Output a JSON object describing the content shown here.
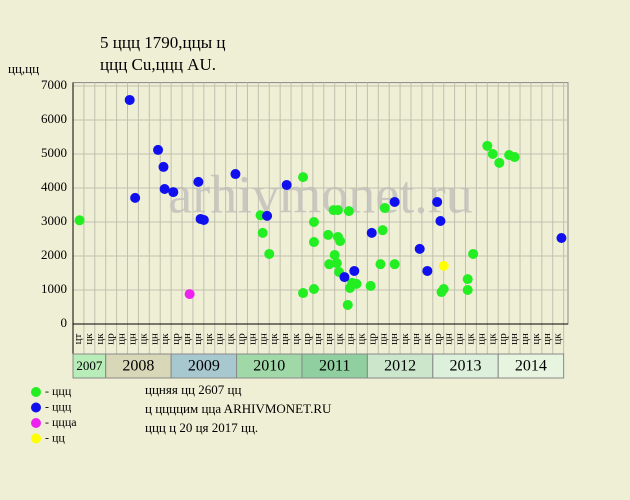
{
  "chart_data": {
    "type": "scatter",
    "title": "5 ццц 1790,ццы ц",
    "subtitle": "ццц Cu,ццц AU.",
    "y_label": "цц,цц",
    "watermark": "arhivmonet.ru",
    "ylim": [
      0,
      7100
    ],
    "yticks": [
      0,
      1000,
      2000,
      3000,
      4000,
      5000,
      6000,
      7000
    ],
    "xlim": [
      0,
      45.4
    ],
    "column_labels": [
      "цт",
      "цк",
      "цк",
      "цр",
      "цн",
      "цн",
      "цк",
      "цн",
      "цк",
      "цр",
      "цн",
      "цн",
      "цк",
      "цн",
      "цк",
      "цр",
      "цн",
      "цн",
      "цк",
      "цн",
      "цк",
      "цр",
      "цн",
      "цн",
      "цк",
      "цн",
      "цк",
      "цр",
      "цн",
      "цн",
      "цк",
      "цн",
      "цк",
      "цр",
      "цн",
      "цн",
      "цк",
      "цн",
      "цк",
      "цр",
      "цн",
      "цн",
      "цк",
      "цн",
      "цк"
    ],
    "years": [
      "2007",
      "2008",
      "2009",
      "2010",
      "2011",
      "2012",
      "2013",
      "2014"
    ],
    "year_columns": [
      3,
      6,
      6,
      6,
      6,
      6,
      6,
      6
    ],
    "year_colors": [
      "#b8ecb8",
      "#d8d8b8",
      "#a8c8d0",
      "#a0d8a8",
      "#90d0a0",
      "#cce6cc",
      "#dcf0dc",
      "#e6f4e0"
    ],
    "grid": true,
    "series": [
      {
        "name": "- ццц",
        "color": "#22ee22",
        "x": [
          0.6,
          17.2,
          17.4,
          18.0,
          21.1,
          21.1,
          22.1,
          22.1,
          22.1,
          23.4,
          23.5,
          23.9,
          24.3,
          24.0,
          24.2,
          24.3,
          24.5,
          24.4,
          25.3,
          25.2,
          25.4,
          25.6,
          26.0,
          27.3,
          28.2,
          28.4,
          28.6,
          29.5,
          33.8,
          34.0,
          36.2,
          36.2,
          36.7,
          38.0,
          38.5,
          39.1,
          40.0,
          40.5
        ],
        "values": [
          3050,
          3200,
          2680,
          2060,
          4320,
          910,
          3000,
          2410,
          1030,
          2620,
          1760,
          3350,
          3350,
          2030,
          1790,
          2560,
          2440,
          1530,
          3320,
          560,
          1060,
          1210,
          1180,
          1120,
          1760,
          2760,
          3410,
          1760,
          940,
          1030,
          1320,
          1000,
          2060,
          5240,
          5000,
          4740,
          4970,
          4910
        ]
      },
      {
        "name": "- ццц",
        "color": "#1010ee",
        "x": [
          5.2,
          5.7,
          7.8,
          8.3,
          8.4,
          9.2,
          11.5,
          11.7,
          12.0,
          14.9,
          17.8,
          19.6,
          24.9,
          25.8,
          27.4,
          29.5,
          31.8,
          32.5,
          33.4,
          33.7,
          44.8
        ],
        "values": [
          6590,
          3710,
          5120,
          4620,
          3970,
          3880,
          4180,
          3090,
          3060,
          4410,
          3180,
          4090,
          1380,
          1560,
          2680,
          3590,
          2210,
          1560,
          3590,
          3030,
          2530
        ]
      },
      {
        "name": "- цццa",
        "color": "#ee22ee",
        "x": [
          10.7
        ],
        "values": [
          880
        ]
      },
      {
        "name": "- цц",
        "color": "#ffff00",
        "x": [
          34.0
        ],
        "values": [
          1710
        ]
      }
    ],
    "notes": [
      "ццняя цц 2607 цц",
      "ц ццццим ццa ARHIVMONET.RU",
      "ццц ц 20 ця 2017 цц."
    ]
  }
}
